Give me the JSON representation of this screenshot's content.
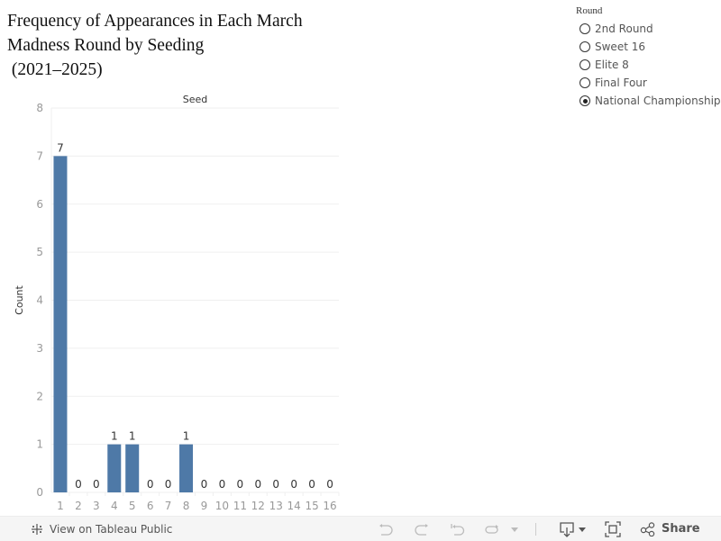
{
  "title": {
    "line1": "Frequency of Appearances in Each March",
    "line2": "Madness Round by Seeding",
    "line3": " (2021–2025)"
  },
  "legend": {
    "title": "Round",
    "options": [
      {
        "label": "2nd Round",
        "selected": false
      },
      {
        "label": "Sweet 16",
        "selected": false
      },
      {
        "label": "Elite 8",
        "selected": false
      },
      {
        "label": "Final Four",
        "selected": false
      },
      {
        "label": "National Championship",
        "selected": true
      }
    ]
  },
  "colors": {
    "bar": "#4e79a7",
    "grid": "#efefef",
    "tick_label": "#999999",
    "data_label": "#333333"
  },
  "chart_data": {
    "type": "bar",
    "title": "Frequency of Appearances in Each March Madness Round by Seeding (2021–2025)",
    "column_header": "Seed",
    "xlabel": "Seed",
    "ylabel": "Count",
    "categories": [
      "1",
      "2",
      "3",
      "4",
      "5",
      "6",
      "7",
      "8",
      "9",
      "10",
      "11",
      "12",
      "13",
      "14",
      "15",
      "16"
    ],
    "values": [
      7,
      0,
      0,
      1,
      1,
      0,
      0,
      1,
      0,
      0,
      0,
      0,
      0,
      0,
      0,
      0
    ],
    "ylim": [
      0,
      8
    ],
    "yticks": [
      0,
      1,
      2,
      3,
      4,
      5,
      6,
      7,
      8
    ],
    "grid": true,
    "data_labels": true,
    "filter": "National Championship"
  },
  "toolbar": {
    "view_on_tableau": "View on Tableau Public",
    "undo": "undo-icon",
    "redo": "redo-icon",
    "revert": "revert-icon",
    "refresh": "refresh-icon",
    "download": "download-icon",
    "fullscreen": "fullscreen-icon",
    "share": "Share"
  }
}
